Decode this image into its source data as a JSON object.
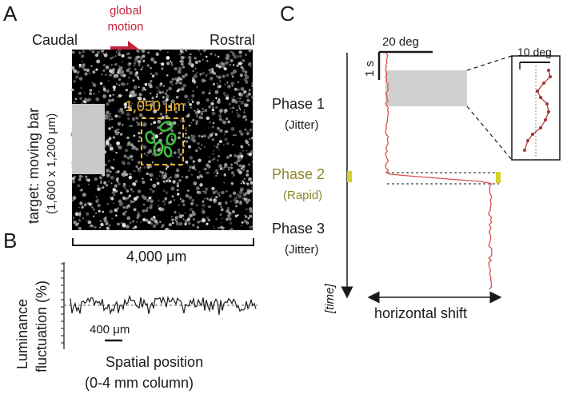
{
  "panel_a": {
    "letter": "A",
    "global_motion_label": "global\nmotion",
    "caudal_label": "Caudal",
    "rostral_label": "Rostral",
    "target_label_line1": "target: moving bar",
    "target_label_line2": "(1,600 x 1,200 μm)",
    "roi_size_label": "1,050 μm",
    "width_label": "4,000 μm",
    "accent_color": "#c4243c",
    "roi_color": "#f2b830",
    "cell_color": "#3cc13c"
  },
  "panel_b": {
    "letter": "B",
    "ylabel_line1": "Luminance",
    "ylabel_line2": "fluctuation (%)",
    "scale_bar_label": "400 μm",
    "xlabel_line1": "Spatial position",
    "xlabel_line2": "(0-4 mm column)"
  },
  "panel_c": {
    "letter": "C",
    "scale_deg": "20 deg",
    "scale_time": "1 s",
    "inset_scale": "10 deg",
    "phase1_title": "Phase 1",
    "phase1_sub": "(Jitter)",
    "phase2_title": "Phase 2",
    "phase2_sub": "(Rapid)",
    "phase3_title": "Phase 3",
    "phase3_sub": "(Jitter)",
    "time_label": "[time]",
    "xaxis_label": "horizontal shift",
    "trace_color": "#d9534f",
    "phase2_color": "#8a8a2a"
  }
}
